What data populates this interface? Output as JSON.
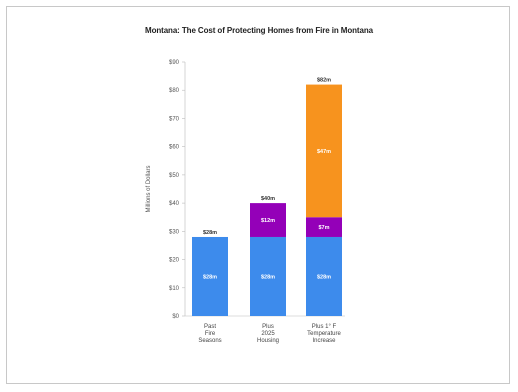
{
  "chart_data": {
    "type": "bar",
    "title": "Montana: The Cost of Protecting Homes from Fire in Montana",
    "ylabel": "Millions of Dollars",
    "ylim": [
      0,
      90
    ],
    "yticks": [
      "$0",
      "$10",
      "$20",
      "$30",
      "$40",
      "$50",
      "$60",
      "$70",
      "$80",
      "$90"
    ],
    "categories": [
      [
        "Past",
        "Fire",
        "Seasons"
      ],
      [
        "Plus",
        "2025",
        "Housing"
      ],
      [
        "Plus 1° F",
        "Temperature",
        "Increase"
      ]
    ],
    "series": [
      {
        "values": [
          28,
          28,
          28
        ],
        "labels": [
          "$28m",
          "$28m",
          "$28m"
        ],
        "color": "#3d8bec"
      },
      {
        "values": [
          0,
          12,
          7
        ],
        "labels": [
          "",
          "$12m",
          "$7m"
        ],
        "color": "#9400b8"
      },
      {
        "values": [
          0,
          0,
          47
        ],
        "labels": [
          "",
          "",
          "$47m"
        ],
        "color": "#f7931e"
      }
    ],
    "totals": [
      "$28m",
      "$40m",
      "$82m"
    ],
    "grid": false
  }
}
